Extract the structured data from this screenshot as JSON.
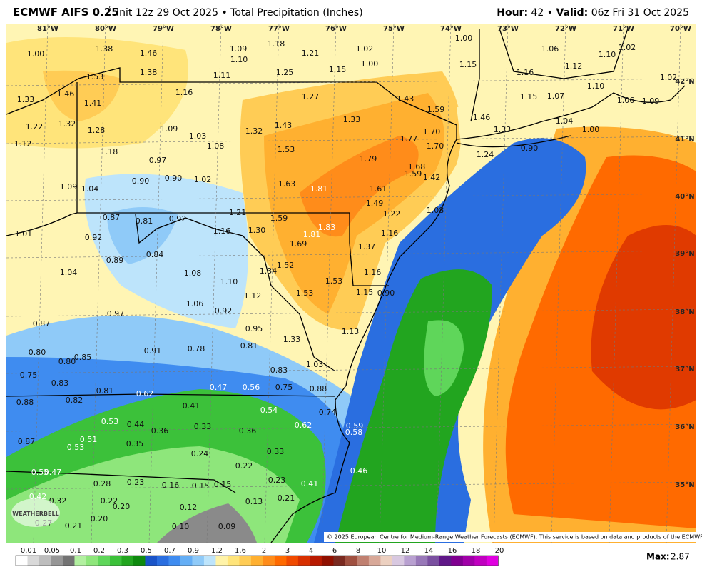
{
  "header": {
    "title": "ECMWF AIFS 0.25",
    "title_degree": "°",
    "subtitle": "Init 12z 29 Oct 2025 • Total Precipitation (Inches)",
    "hour_label": "Hour:",
    "hour": "42",
    "separator": "•",
    "valid_label": "Valid:",
    "valid": "06z Fri 31 Oct 2025"
  },
  "map": {
    "longitude_labels": [
      "81°W",
      "80°W",
      "79°W",
      "78°W",
      "77°W",
      "76°W",
      "75°W",
      "74°W",
      "73°W",
      "72°W",
      "71°W",
      "70°W"
    ],
    "latitude_labels": [
      "42°N",
      "41°N",
      "40°N",
      "39°N",
      "38°N",
      "37°N",
      "36°N",
      "35°N"
    ],
    "point_labels": [
      "1.00",
      "1.38",
      "1.46",
      "1.09",
      "1.10",
      "1.18",
      "1.21",
      "1.02",
      "1.00",
      "1.00",
      "1.15",
      "1.06",
      "1.10",
      "1.02",
      "1.12",
      "1.16",
      "1.02",
      "1.53",
      "1.38",
      "1.11",
      "1.25",
      "1.15",
      "1.33",
      "1.46",
      "1.41",
      "1.16",
      "1.27",
      "1.43",
      "1.59",
      "1.15",
      "1.07",
      "1.10",
      "1.22",
      "1.32",
      "1.28",
      "1.09",
      "1.03",
      "1.32",
      "1.43",
      "1.33",
      "1.46",
      "1.33",
      "1.04",
      "1.00",
      "1.06",
      "1.09",
      "1.12",
      "1.18",
      "1.08",
      "1.53",
      "1.77",
      "1.70",
      "1.70",
      "1.79",
      "1.24",
      "0.90",
      "0.97",
      "1.68",
      "1.59",
      "1.42",
      "1.09",
      "1.04",
      "0.90",
      "0.90",
      "1.02",
      "1.63",
      "1.81",
      "1.61",
      "1.49",
      "1.22",
      "1.08",
      "0.87",
      "0.81",
      "0.92",
      "1.21",
      "1.59",
      "1.01",
      "0.92",
      "1.16",
      "1.30",
      "1.81",
      "1.83",
      "1.16",
      "1.69",
      "1.37",
      "0.84",
      "0.89",
      "1.52",
      "1.34",
      "1.04",
      "1.08",
      "1.16",
      "1.10",
      "1.53",
      "1.12",
      "1.53",
      "1.15",
      "0.90",
      "1.06",
      "0.92",
      "0.97",
      "0.87",
      "0.95",
      "1.13",
      "1.33",
      "0.81",
      "0.91",
      "0.78",
      "0.80",
      "0.85",
      "0.80",
      "1.03",
      "0.83",
      "0.75",
      "0.83",
      "0.81",
      "0.62",
      "0.47",
      "0.56",
      "0.75",
      "0.88",
      "0.88",
      "0.82",
      "0.41",
      "0.54",
      "0.74",
      "0.53",
      "0.44",
      "0.36",
      "0.33",
      "0.36",
      "0.62",
      "0.59",
      "0.58",
      "0.51",
      "0.53",
      "0.35",
      "0.87",
      "0.24",
      "0.33",
      "0.22",
      "0.46",
      "0.55",
      "0.47",
      "0.28",
      "0.23",
      "0.16",
      "0.15",
      "0.15",
      "0.23",
      "0.41",
      "0.42",
      "0.32",
      "0.22",
      "0.20",
      "0.12",
      "0.13",
      "0.21",
      "0.27",
      "0.21",
      "0.20",
      "0.10",
      "0.09"
    ],
    "logo": "WEATHERBELL",
    "copyright": "© 2025 European Centre for Medium-Range Weather Forecasts (ECMWF). This service is based on data and products of the ECMWF."
  },
  "legend": {
    "labels": [
      "0.01",
      "0.05",
      "0.1",
      "0.2",
      "0.3",
      "0.5",
      "0.7",
      "0.9",
      "1.2",
      "1.6",
      "2",
      "3",
      "4",
      "6",
      "8",
      "10",
      "12",
      "14",
      "16",
      "18",
      "20"
    ],
    "colors": [
      "#ffffff",
      "#d9d9d9",
      "#bdbdbd",
      "#969696",
      "#737373",
      "#b2f0a0",
      "#8ee67b",
      "#5fd65a",
      "#3cc13a",
      "#22a51f",
      "#0e8a0e",
      "#1a54c8",
      "#2a6ee0",
      "#3f8cf0",
      "#64aef5",
      "#8fcaf8",
      "#bde4fb",
      "#fff3a8",
      "#ffe47a",
      "#ffcc55",
      "#ffb030",
      "#ff8c1a",
      "#ff6a00",
      "#f04a00",
      "#d83000",
      "#b81a00",
      "#901000",
      "#7a2a20",
      "#a05040",
      "#c08070",
      "#d8a898",
      "#ecd0c0",
      "#d8c8e0",
      "#b8a0d0",
      "#9878b8",
      "#7a50a0",
      "#601888",
      "#800090",
      "#a000a8",
      "#c000c0",
      "#e000e0"
    ],
    "max_label": "Max:",
    "max_value": "2.87"
  }
}
